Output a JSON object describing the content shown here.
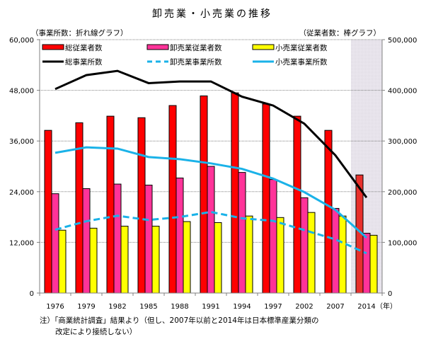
{
  "chart_data": {
    "type": "bar+line",
    "title": "卸売業・小売業の推移",
    "left_axis_label": "（事業所数：折れ線グラフ）",
    "right_axis_label": "（従業者数：棒グラフ）",
    "x_unit_label": "（年）",
    "categories": [
      "1976",
      "1979",
      "1982",
      "1985",
      "1988",
      "1991",
      "1994",
      "1997",
      "2002",
      "2007",
      "2014"
    ],
    "highlighted_category": "2014",
    "left_axis": {
      "range": [
        0,
        60000
      ],
      "ticks": [
        "0",
        "12,000",
        "24,000",
        "36,000",
        "48,000",
        "60,000"
      ]
    },
    "right_axis": {
      "range": [
        0,
        500000
      ],
      "ticks": [
        "0",
        "100,000",
        "200,000",
        "300,000",
        "400,000",
        "500,000"
      ]
    },
    "grid": true,
    "bar_series": [
      {
        "name": "総従業者数",
        "color": "#ff0000",
        "axis": "right",
        "values": [
          321000,
          336000,
          349000,
          346000,
          370000,
          389000,
          395000,
          373000,
          349000,
          321000,
          233000
        ]
      },
      {
        "name": "卸売業従業者数",
        "color": "#ff3399",
        "axis": "right",
        "values": [
          196000,
          206000,
          215000,
          213000,
          227000,
          250000,
          238000,
          224000,
          188000,
          167000,
          118000
        ]
      },
      {
        "name": "小売業従業者数",
        "color": "#ffff00",
        "axis": "right",
        "values": [
          124000,
          128000,
          132000,
          132000,
          141000,
          139000,
          152000,
          149000,
          159000,
          152000,
          114000
        ]
      }
    ],
    "line_series": [
      {
        "name": "総事業所数",
        "color": "#000000",
        "style": "solid",
        "axis": "left",
        "values": [
          48300,
          51600,
          52600,
          49700,
          50100,
          50100,
          46500,
          44400,
          40100,
          32600,
          22600
        ]
      },
      {
        "name": "卸売業事業所数",
        "color": "#1ab2e8",
        "style": "dashed",
        "axis": "left",
        "values": [
          15000,
          17000,
          18300,
          17300,
          18000,
          19200,
          17700,
          17100,
          14900,
          12700,
          9400
        ]
      },
      {
        "name": "小売業事業所数",
        "color": "#1ab2e8",
        "style": "solid",
        "axis": "left",
        "values": [
          33200,
          34500,
          34200,
          32200,
          31700,
          30700,
          29400,
          27100,
          23900,
          19700,
          13100
        ]
      }
    ],
    "legend_placement": "top-inside"
  },
  "note": {
    "line1": "注）「商業統計調査」結果より（但し、2007年以前と2014年は日本標準産業分類の",
    "line2": "改定により接続しない）"
  }
}
